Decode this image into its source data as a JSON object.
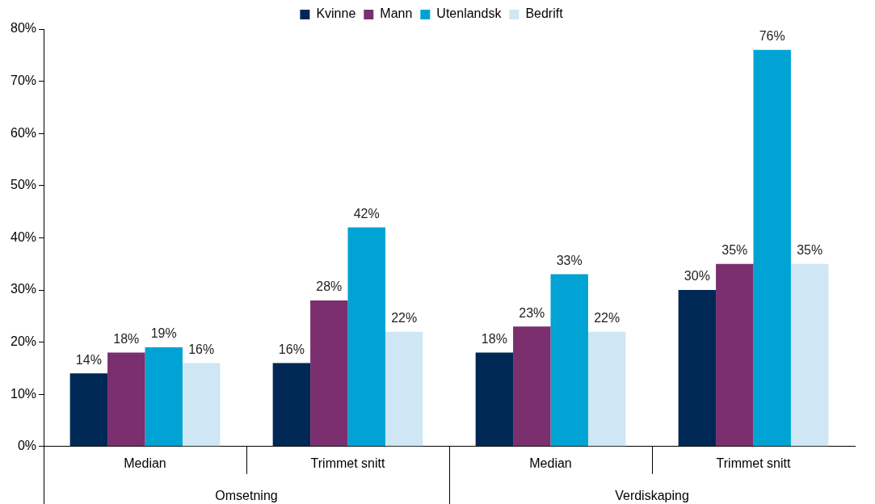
{
  "chart_data": {
    "type": "bar",
    "categories": [
      "Median",
      "Trimmet snitt",
      "Median",
      "Trimmet snitt"
    ],
    "series": [
      {
        "name": "Kvinne",
        "color": "#002855",
        "values": [
          14,
          16,
          18,
          30
        ],
        "value_labels": [
          "14%",
          "16%",
          "18%",
          "30%"
        ]
      },
      {
        "name": "Mann",
        "color": "#7b2f6e",
        "values": [
          18,
          28,
          23,
          35
        ],
        "value_labels": [
          "18%",
          "28%",
          "23%",
          "35%"
        ]
      },
      {
        "name": "Utenlandsk",
        "color": "#00a3d4",
        "values": [
          19,
          42,
          33,
          76
        ],
        "value_labels": [
          "19%",
          "42%",
          "33%",
          "76%"
        ]
      },
      {
        "name": "Bedrift",
        "color": "#cfe6f4",
        "values": [
          16,
          22,
          22,
          35
        ],
        "value_labels": [
          "16%",
          "22%",
          "22%",
          "35%"
        ]
      }
    ],
    "ylim": [
      0,
      80
    ],
    "yticks": [
      {
        "value": 0,
        "label": "0%"
      },
      {
        "value": 10,
        "label": "10%"
      },
      {
        "value": 20,
        "label": "20%"
      },
      {
        "value": 30,
        "label": "30%"
      },
      {
        "value": 40,
        "label": "40%"
      },
      {
        "value": 50,
        "label": "50%"
      },
      {
        "value": 60,
        "label": "60%"
      },
      {
        "value": 70,
        "label": "70%"
      },
      {
        "value": 80,
        "label": "80%"
      }
    ],
    "annotations": [
      "Omsetning",
      "Verdiskaping"
    ],
    "legend": "top",
    "grid": false
  }
}
